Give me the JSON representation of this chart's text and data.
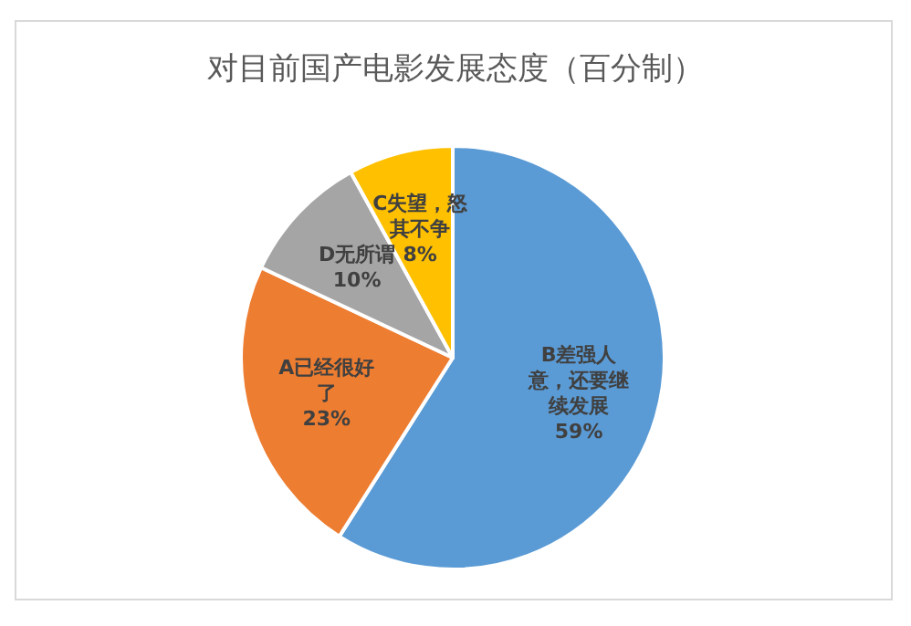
{
  "chart_data": {
    "type": "pie",
    "title": "对目前国产电影发展态度（百分制）",
    "categories": [
      "B差强人意，还要继续发展",
      "A已经很好了",
      "D无所谓",
      "C失望，怒其不争"
    ],
    "values": [
      59,
      23,
      10,
      8
    ],
    "colors": [
      "#5b9bd5",
      "#ed7d31",
      "#a5a5a5",
      "#ffc000"
    ],
    "value_labels": [
      "59%",
      "23%",
      "10%",
      "8%"
    ]
  }
}
